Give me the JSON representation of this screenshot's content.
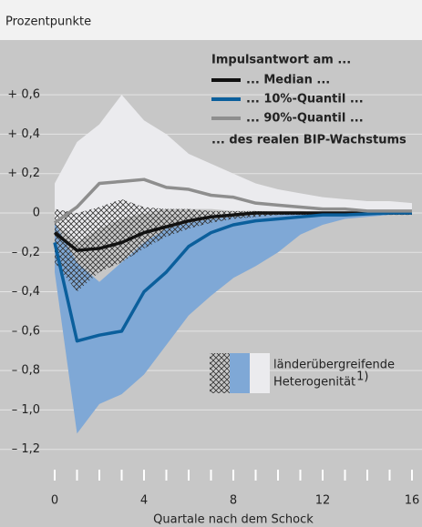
{
  "chart_data": {
    "type": "line",
    "y_unit_label": "Prozentpunkte",
    "xlabel": "Quartale nach dem Schock",
    "x": [
      0,
      1,
      2,
      3,
      4,
      5,
      6,
      7,
      8,
      9,
      10,
      11,
      12,
      13,
      14,
      15,
      16
    ],
    "xlim": [
      0,
      16
    ],
    "xticks": [
      0,
      4,
      8,
      12,
      16
    ],
    "xticks_minor": [
      1,
      2,
      3,
      5,
      6,
      7,
      9,
      10,
      11,
      13,
      14,
      15
    ],
    "ylim": [
      -1.4,
      0.85
    ],
    "yticks": [
      {
        "value": 0.6,
        "label": "+ 0,6"
      },
      {
        "value": 0.4,
        "label": "+ 0,4"
      },
      {
        "value": 0.2,
        "label": "+ 0,2"
      },
      0,
      {
        "value": -0.2,
        "label": "– 0,2"
      },
      {
        "value": -0.4,
        "label": "– 0,4"
      },
      {
        "value": -0.6,
        "label": "– 0,6"
      },
      {
        "value": -0.8,
        "label": "– 0,8"
      },
      {
        "value": -1.0,
        "label": "– 1,0"
      },
      {
        "value": -1.2,
        "label": "– 1,2"
      }
    ],
    "grid": true,
    "legend_title": "Impulsantwort am ...",
    "legend_footer": "... des realen BIP-Wachstums",
    "band_label": [
      "länderübergreifende",
      "Heterogenität"
    ],
    "band_note": "1)",
    "bands": [
      {
        "color": "#ebebee",
        "hatch": false,
        "upper": [
          0.15,
          0.36,
          0.45,
          0.6,
          0.47,
          0.4,
          0.3,
          0.25,
          0.2,
          0.15,
          0.12,
          0.1,
          0.08,
          0.07,
          0.06,
          0.06,
          0.05
        ],
        "lower": [
          -0.05,
          -0.15,
          -0.08,
          -0.03,
          0,
          0.02,
          0.02,
          0.02,
          0.01,
          0.01,
          0.01,
          0.01,
          0,
          0,
          0,
          0,
          0
        ]
      },
      {
        "color": "#7fa8d6",
        "hatch": false,
        "upper": [
          -0.05,
          -0.25,
          -0.35,
          -0.25,
          -0.15,
          -0.08,
          -0.05,
          -0.03,
          -0.02,
          -0.01,
          -0.01,
          0,
          0,
          0,
          0,
          0,
          0
        ],
        "lower": [
          -0.3,
          -1.12,
          -0.97,
          -0.92,
          -0.82,
          -0.67,
          -0.52,
          -0.42,
          -0.33,
          -0.27,
          -0.2,
          -0.11,
          -0.06,
          -0.03,
          -0.02,
          -0.01,
          0
        ]
      },
      {
        "color": "#444444",
        "hatch": true,
        "upper": [
          0.02,
          0,
          0.03,
          0.07,
          0.03,
          0.02,
          0.02,
          0.01,
          0.01,
          0.01,
          0.005,
          0.005,
          0.005,
          0.005,
          0.005,
          0.005,
          0.005
        ],
        "lower": [
          -0.25,
          -0.4,
          -0.3,
          -0.25,
          -0.18,
          -0.12,
          -0.08,
          -0.05,
          -0.03,
          -0.02,
          -0.01,
          -0.01,
          -0.01,
          -0.01,
          -0.01,
          -0.01,
          -0.01
        ]
      }
    ],
    "series": [
      {
        "name": "... Median ...",
        "color": "#111111",
        "values": [
          -0.1,
          -0.19,
          -0.18,
          -0.15,
          -0.1,
          -0.07,
          -0.04,
          -0.02,
          -0.01,
          0,
          0,
          0,
          0,
          0,
          0,
          0,
          0
        ]
      },
      {
        "name": "... 10%-Quantil ...",
        "color": "#0b5f9c",
        "values": [
          -0.15,
          -0.65,
          -0.62,
          -0.6,
          -0.4,
          -0.3,
          -0.17,
          -0.1,
          -0.06,
          -0.04,
          -0.03,
          -0.02,
          -0.01,
          -0.01,
          -0.005,
          0,
          0
        ]
      },
      {
        "name": "... 90%-Quantil ...",
        "color": "#8e8e8e",
        "values": [
          -0.05,
          0.03,
          0.15,
          0.16,
          0.17,
          0.13,
          0.12,
          0.09,
          0.08,
          0.05,
          0.04,
          0.03,
          0.02,
          0.02,
          0.01,
          0.01,
          0.01
        ]
      }
    ]
  }
}
